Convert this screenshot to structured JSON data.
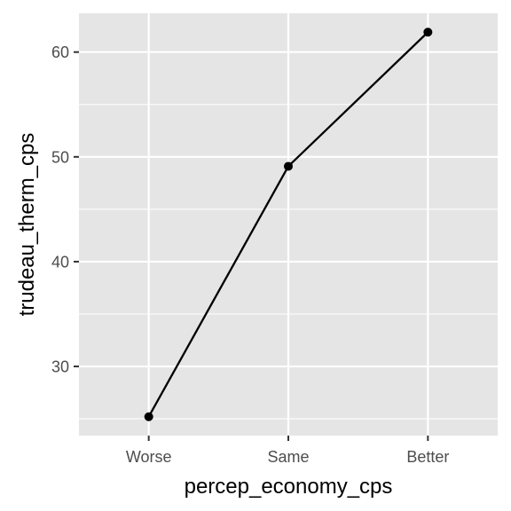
{
  "chart_data": {
    "type": "line",
    "x": [
      "Worse",
      "Same",
      "Better"
    ],
    "series": [
      {
        "values": [
          25.2,
          49.1,
          61.9
        ]
      }
    ],
    "title": "",
    "xlabel": "percep_economy_cps",
    "ylabel": "trudeau_therm_cps",
    "ylim": [
      23.4,
      63.7
    ],
    "yticks": [
      30,
      40,
      50,
      60
    ],
    "grid": true,
    "legend": "none"
  },
  "colors": {
    "panel_background": "#e5e5e5",
    "grid_line": "#ffffff",
    "line": "#000000",
    "point": "#000000",
    "tick_label": "#4d4d4d",
    "axis_title": "#000000"
  }
}
